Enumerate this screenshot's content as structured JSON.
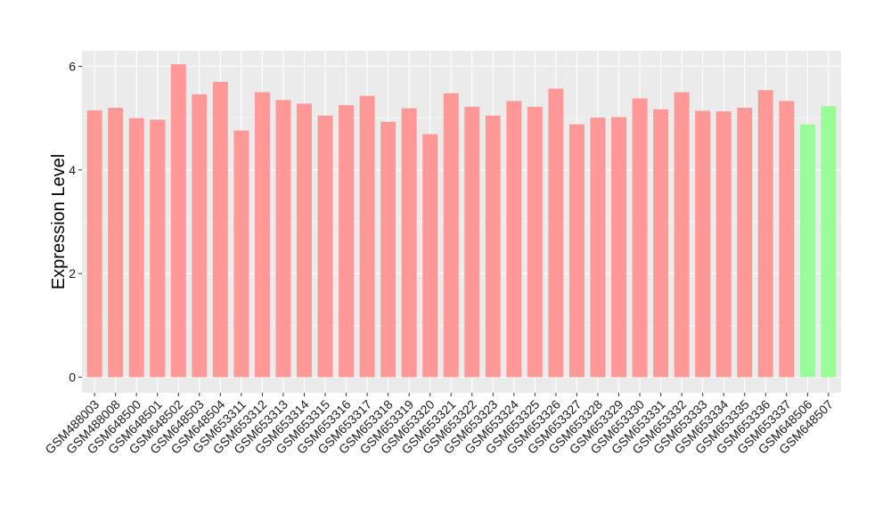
{
  "chart_data": {
    "type": "bar",
    "title": "",
    "xlabel": "",
    "ylabel": "Expression Level",
    "ylim": [
      -0.3,
      6.3
    ],
    "yticks": [
      0,
      2,
      4,
      6
    ],
    "grid": true,
    "legend": "none",
    "colors": {
      "group_a": "#ff9896",
      "group_b": "#98ff98",
      "panel_background": "#ebebeb",
      "grid_line": "#ffffff"
    },
    "categories": [
      "GSM488003",
      "GSM488008",
      "GSM648500",
      "GSM648501",
      "GSM648502",
      "GSM648503",
      "GSM648504",
      "GSM653311",
      "GSM653312",
      "GSM653313",
      "GSM653314",
      "GSM653315",
      "GSM653316",
      "GSM653317",
      "GSM653318",
      "GSM653319",
      "GSM653320",
      "GSM653321",
      "GSM653322",
      "GSM653323",
      "GSM653324",
      "GSM653325",
      "GSM653326",
      "GSM653327",
      "GSM653328",
      "GSM653329",
      "GSM653330",
      "GSM653331",
      "GSM653332",
      "GSM653333",
      "GSM653334",
      "GSM653335",
      "GSM653336",
      "GSM653337",
      "GSM648506",
      "GSM648507"
    ],
    "values": [
      5.15,
      5.2,
      5.0,
      4.97,
      6.04,
      5.46,
      5.7,
      4.76,
      5.5,
      5.35,
      5.28,
      5.05,
      5.25,
      5.43,
      4.93,
      5.19,
      4.69,
      5.48,
      5.22,
      5.05,
      5.33,
      5.22,
      5.57,
      4.88,
      5.01,
      5.02,
      5.38,
      5.17,
      5.5,
      5.14,
      5.13,
      5.2,
      5.54,
      5.33,
      4.88,
      5.23
    ],
    "groups": [
      "group_a",
      "group_a",
      "group_a",
      "group_a",
      "group_a",
      "group_a",
      "group_a",
      "group_a",
      "group_a",
      "group_a",
      "group_a",
      "group_a",
      "group_a",
      "group_a",
      "group_a",
      "group_a",
      "group_a",
      "group_a",
      "group_a",
      "group_a",
      "group_a",
      "group_a",
      "group_a",
      "group_a",
      "group_a",
      "group_a",
      "group_a",
      "group_a",
      "group_a",
      "group_a",
      "group_a",
      "group_a",
      "group_a",
      "group_a",
      "group_b",
      "group_b"
    ]
  }
}
